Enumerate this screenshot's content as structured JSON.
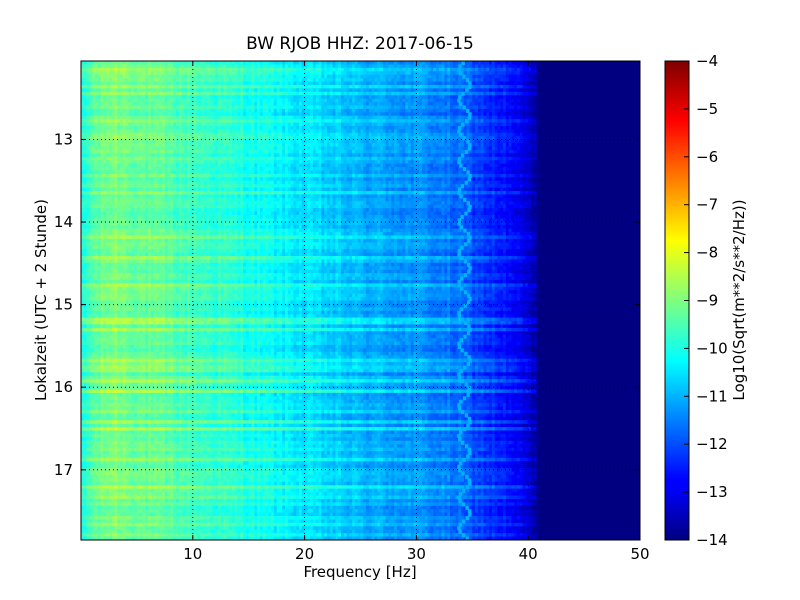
{
  "chart_data": {
    "type": "heatmap",
    "title": "BW RJOB HHZ: 2017-06-15",
    "xlabel": "Frequency [Hz]",
    "ylabel": "Lokalzeit (UTC + 2 Stunde)",
    "xlim": [
      0,
      50
    ],
    "ylim": [
      17.85,
      12.05
    ],
    "x_ticks": [
      10,
      20,
      30,
      40,
      50
    ],
    "y_ticks": [
      13,
      14,
      15,
      16,
      17
    ],
    "grid": true,
    "colorbar": {
      "label": "Log10(Sqrt(m**2/s**2/Hz))",
      "range": [
        -14,
        -4
      ],
      "ticks": [
        -4,
        -5,
        -6,
        -7,
        -8,
        -9,
        -10,
        -11,
        -12,
        -13,
        -14
      ],
      "colormap": "jet"
    },
    "frequency_profile": {
      "frequency_hz": [
        0,
        1,
        3,
        5,
        10,
        15,
        20,
        25,
        30,
        33,
        35,
        38,
        40,
        41,
        50
      ],
      "log10_amplitude": [
        -10.2,
        -9.4,
        -9.0,
        -9.2,
        -9.6,
        -10.0,
        -10.5,
        -11.0,
        -11.3,
        -11.6,
        -12.0,
        -12.6,
        -13.2,
        -14.0,
        -14.0
      ]
    },
    "notes_visible_features": {
      "tone_line_frequency_hz": 34.3,
      "tone_line_log10_amplitude": -11.0
    }
  }
}
